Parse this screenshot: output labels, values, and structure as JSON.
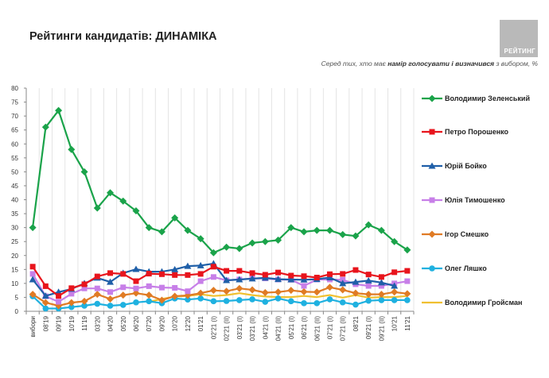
{
  "header": {
    "title": "Рейтинги кандидатів: ДИНАМІКА",
    "logo_text": "РЕЙТИНГ",
    "subtitle_pre": "Серед тих, хто має ",
    "subtitle_bold": "намір голосувати і визначився",
    "subtitle_post": " з вибором, %"
  },
  "chart_data": {
    "type": "line",
    "title": "",
    "xlabel": "",
    "ylabel": "",
    "ylim": [
      0,
      80
    ],
    "yticks": [
      0,
      5,
      10,
      15,
      20,
      25,
      30,
      35,
      40,
      45,
      50,
      55,
      60,
      65,
      70,
      75,
      80
    ],
    "grid": "vertical",
    "legend": "right",
    "categories": [
      "вибори",
      "08'19",
      "09'19",
      "10'19",
      "11'19",
      "03'20",
      "04'20",
      "05'20",
      "06'20",
      "07'20",
      "09'20",
      "10'20",
      "12'20",
      "01'21",
      "02'21 (I)",
      "02'21 (II)",
      "03'21 (I)",
      "03'21 (II)",
      "04'21 (I)",
      "04'21 (II)",
      "05'21 (I)",
      "06'21 (I)",
      "06'21 (II)",
      "07'21 (I)",
      "07'21 (II)",
      "08'21",
      "09'21 (I)",
      "09'21 (II)",
      "10'21",
      "11'21"
    ],
    "series": [
      {
        "name": "Володимир Зеленський",
        "color": "#1aa34a",
        "marker": "diamond",
        "values": [
          30,
          66,
          72,
          58,
          50,
          37,
          42.5,
          39.5,
          36,
          30,
          28.5,
          33.5,
          29,
          26,
          21,
          23,
          22.5,
          24.5,
          25,
          25.5,
          30,
          28.5,
          29,
          29,
          27.5,
          27,
          31,
          29,
          25,
          22
        ]
      },
      {
        "name": "Петро Порошенко",
        "color": "#e8141c",
        "marker": "square",
        "values": [
          16,
          9,
          5.5,
          8.3,
          9.7,
          12.5,
          13.7,
          13.4,
          10.8,
          13.5,
          13.3,
          13,
          13,
          13.4,
          16,
          14.5,
          14.5,
          13.7,
          13.1,
          13.9,
          12.8,
          12.6,
          12.1,
          13.3,
          13.4,
          14.8,
          13.2,
          12.3,
          14,
          14.5
        ]
      },
      {
        "name": "Юрій Бойко",
        "color": "#1f5fa8",
        "marker": "triangle",
        "values": [
          11.4,
          5.5,
          6.9,
          8,
          10,
          12,
          10.5,
          13.7,
          15.1,
          14.2,
          14.2,
          15,
          16.2,
          16.4,
          17.1,
          11.1,
          11.4,
          11.7,
          12,
          11.5,
          11.4,
          11.3,
          11.5,
          12.1,
          10,
          10.5,
          11,
          10.3,
          9.1,
          null
        ]
      },
      {
        "name": "Юлія Тимошенко",
        "color": "#c77fe8",
        "marker": "square",
        "values": [
          13.4,
          5.4,
          3.4,
          6.3,
          8.2,
          8.2,
          6.9,
          8.6,
          8.2,
          9,
          8.5,
          8.4,
          7.2,
          10.8,
          12.3,
          11.1,
          11.4,
          11.8,
          11.8,
          11.4,
          11.3,
          9.1,
          11.4,
          11.4,
          11.3,
          9.7,
          9.1,
          9.1,
          10,
          10.8
        ]
      },
      {
        "name": "Ігор Смешко",
        "color": "#e07b24",
        "marker": "diamond",
        "values": [
          6.1,
          3.1,
          2,
          3.1,
          3.6,
          6.1,
          4.4,
          5.8,
          6.5,
          5.8,
          4,
          5.4,
          5.7,
          6.5,
          7.5,
          7.2,
          8.2,
          7.7,
          6.7,
          6.9,
          7.5,
          7,
          6.9,
          8.6,
          7.7,
          6.5,
          6.1,
          6.1,
          6.9,
          6.3
        ]
      },
      {
        "name": "Олег Ляшко",
        "color": "#1fb1e0",
        "marker": "circle",
        "values": [
          5.4,
          1,
          1,
          1.5,
          2,
          2.7,
          2,
          2.3,
          3.2,
          3.6,
          2.9,
          4.6,
          4.2,
          4.6,
          3.6,
          3.7,
          4,
          4.3,
          3.4,
          4.6,
          3.6,
          2.9,
          2.9,
          4.3,
          3.2,
          2.4,
          3.8,
          4,
          4,
          4
        ]
      },
      {
        "name": "Володимир Гройсман",
        "color": "#f0c030",
        "marker": "none",
        "values": [
          null,
          null,
          null,
          null,
          null,
          null,
          null,
          null,
          null,
          3.4,
          4.4,
          5.3,
          5.5,
          6.1,
          5.5,
          5.8,
          6.5,
          5.8,
          5.3,
          5.1,
          5.1,
          5.5,
          5.1,
          5.8,
          4.9,
          5.8,
          4.9,
          5.1,
          5.1,
          5.5
        ]
      }
    ]
  }
}
